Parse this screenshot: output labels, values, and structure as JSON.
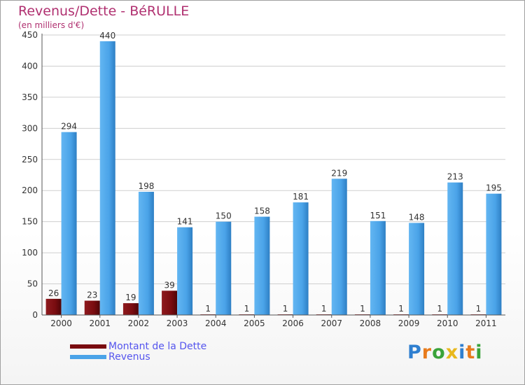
{
  "header": {
    "title": "Revenus/Dette - BéRULLE",
    "subtitle": "(en milliers d'€)"
  },
  "legend": {
    "items": [
      {
        "label": "Montant de la Dette",
        "color": "#7a0c10"
      },
      {
        "label": "Revenus",
        "color": "#4aa3e8"
      }
    ]
  },
  "logo": {
    "letters": [
      {
        "ch": "P",
        "color": "#2f7fd0"
      },
      {
        "ch": "r",
        "color": "#e87b1c"
      },
      {
        "ch": "o",
        "color": "#3aa33a"
      },
      {
        "ch": "x",
        "color": "#e8b81c"
      },
      {
        "ch": "i",
        "color": "#2f7fd0"
      },
      {
        "ch": "t",
        "color": "#e87b1c"
      },
      {
        "ch": "i",
        "color": "#3aa33a"
      }
    ]
  },
  "chart_data": {
    "type": "bar",
    "title": "Revenus/Dette - BéRULLE",
    "subtitle": "(en milliers d'€)",
    "categories": [
      "2000",
      "2001",
      "2002",
      "2003",
      "2004",
      "2005",
      "2006",
      "2007",
      "2008",
      "2009",
      "2010",
      "2011"
    ],
    "series": [
      {
        "name": "Montant de la Dette",
        "color": "#7a0c10",
        "values": [
          26,
          23,
          19,
          39,
          1,
          1,
          1,
          1,
          1,
          1,
          1,
          1
        ]
      },
      {
        "name": "Revenus",
        "color": "#4aa3e8",
        "values": [
          294,
          440,
          198,
          141,
          150,
          158,
          181,
          219,
          151,
          148,
          213,
          195
        ]
      }
    ],
    "ylim": [
      0,
      450
    ],
    "yticks": [
      0,
      50,
      100,
      150,
      200,
      250,
      300,
      350,
      400,
      450
    ],
    "grid": true,
    "legend_position": "bottom-left"
  }
}
